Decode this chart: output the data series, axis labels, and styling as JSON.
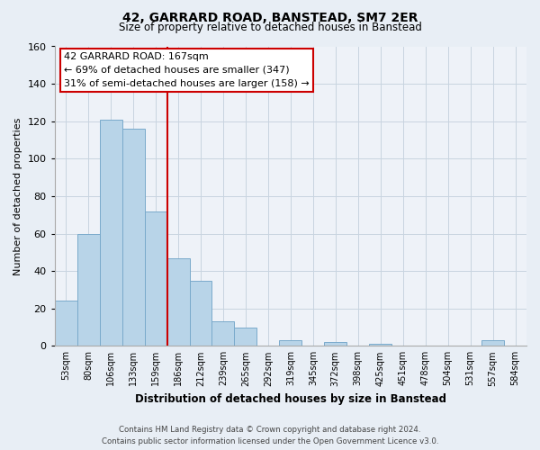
{
  "title": "42, GARRARD ROAD, BANSTEAD, SM7 2ER",
  "subtitle": "Size of property relative to detached houses in Banstead",
  "xlabel": "Distribution of detached houses by size in Banstead",
  "ylabel": "Number of detached properties",
  "bar_labels": [
    "53sqm",
    "80sqm",
    "106sqm",
    "133sqm",
    "159sqm",
    "186sqm",
    "212sqm",
    "239sqm",
    "265sqm",
    "292sqm",
    "319sqm",
    "345sqm",
    "372sqm",
    "398sqm",
    "425sqm",
    "451sqm",
    "478sqm",
    "504sqm",
    "531sqm",
    "557sqm",
    "584sqm"
  ],
  "bar_values": [
    24,
    60,
    121,
    116,
    72,
    47,
    35,
    13,
    10,
    0,
    3,
    0,
    2,
    0,
    1,
    0,
    0,
    0,
    0,
    3,
    0
  ],
  "bar_color": "#b8d4e8",
  "bar_edge_color": "#7aaacb",
  "ylim": [
    0,
    160
  ],
  "yticks": [
    0,
    20,
    40,
    60,
    80,
    100,
    120,
    140,
    160
  ],
  "vline_x": 4.5,
  "vline_color": "#cc0000",
  "annotation_title": "42 GARRARD ROAD: 167sqm",
  "annotation_line1": "← 69% of detached houses are smaller (347)",
  "annotation_line2": "31% of semi-detached houses are larger (158) →",
  "footer_line1": "Contains HM Land Registry data © Crown copyright and database right 2024.",
  "footer_line2": "Contains public sector information licensed under the Open Government Licence v3.0.",
  "background_color": "#e8eef5",
  "plot_bg_color": "#eef2f8",
  "grid_color": "#c8d4e0"
}
